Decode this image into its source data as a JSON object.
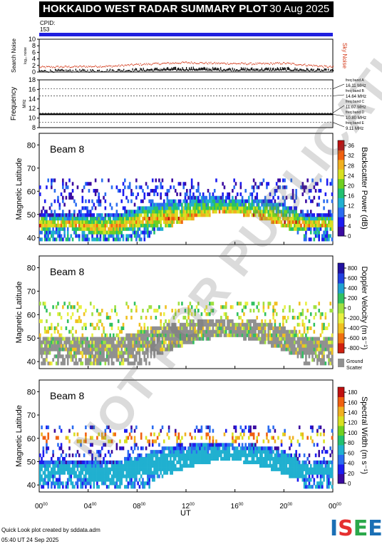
{
  "header": {
    "title": "HOKKAIDO WEST RADAR SUMMARY PLOT",
    "date": "30 Aug 2025",
    "cpid_label": "CPID:",
    "cpid_value": "153"
  },
  "watermark": "NOT FOR PUBLICATION",
  "footer": {
    "line1": "Quick Look plot created by sddata.adm",
    "line2": "05:40 UT 24 Sep 2025"
  },
  "logo": {
    "text": "ISEE",
    "colors": [
      "#1a6fb5",
      "#e53030",
      "#2aa84a",
      "#1a6fb5"
    ]
  },
  "chart_data": [
    {
      "type": "scatter",
      "name": "noise",
      "ylabel": "Search Noise",
      "ylabel2": "log₁₀ noise",
      "right_label": "Sky Noise",
      "ylim": [
        0,
        10
      ],
      "yticks": [
        0,
        2,
        4,
        6,
        8,
        10
      ],
      "x": [
        0,
        2,
        4,
        6,
        8,
        10,
        12,
        14,
        16,
        18,
        20,
        22,
        24
      ],
      "series": [
        {
          "name": "Sky Noise",
          "color": "#d43a1a",
          "values": [
            1.6,
            1.7,
            1.8,
            1.9,
            2.4,
            2.7,
            3.0,
            2.8,
            2.7,
            2.6,
            2.8,
            2.2,
            1.6
          ]
        },
        {
          "name": "Search Noise",
          "color": "#000000",
          "values": [
            0.4,
            0.5,
            0.5,
            0.6,
            0.8,
            1.0,
            1.2,
            1.1,
            1.0,
            1.0,
            1.1,
            0.8,
            0.5
          ]
        }
      ]
    },
    {
      "type": "line",
      "name": "frequency",
      "ylabel": "Frequency",
      "ylabel2": "MHz",
      "ylim": [
        8,
        18
      ],
      "yticks": [
        8,
        10,
        12,
        14,
        16,
        18
      ],
      "freq_mhz": 10.8,
      "bands": [
        {
          "label": "freq band A",
          "value": "16.11 MHz",
          "mhz": 16.11
        },
        {
          "label": "freq band B",
          "value": "14.64 MHz",
          "mhz": 14.64
        },
        {
          "label": "freq band C",
          "value": "11.07 MHz",
          "mhz": 11.07
        },
        {
          "label": "freq band D",
          "value": "10.80 MHz",
          "mhz": 10.8
        },
        {
          "label": "freq band E",
          "value": "9.11 MHz",
          "mhz": 9.11
        }
      ]
    },
    {
      "type": "heatmap",
      "name": "power",
      "beam": "Beam  8",
      "ylabel": "Magnetic Latitude",
      "ylim": [
        37,
        85
      ],
      "yticks": [
        40,
        50,
        60,
        70,
        80
      ],
      "colorbar_label": "Backscatter Power (dB)",
      "colorbar_ticks": [
        "0",
        "4",
        "8",
        "12",
        "16",
        "20",
        "24",
        "28",
        "32",
        "36"
      ],
      "colorbar_range": [
        0,
        38
      ],
      "colormap": [
        "#3a0aa0",
        "#1c1cf0",
        "#2a6cf0",
        "#20b0d0",
        "#22c070",
        "#70d020",
        "#d8e020",
        "#f0b020",
        "#f06010",
        "#c01010"
      ]
    },
    {
      "type": "heatmap",
      "name": "velocity",
      "beam": "Beam  8",
      "ylabel": "Magnetic Latitude",
      "ylim": [
        37,
        85
      ],
      "yticks": [
        40,
        50,
        60,
        70,
        80
      ],
      "colorbar_label": "Doppler Velocity (m s⁻¹)",
      "colorbar_ticks": [
        "-800",
        "-600",
        "-400",
        "-200",
        "0",
        "200",
        "400",
        "600",
        "800"
      ],
      "colorbar_range": [
        -900,
        900
      ],
      "colormap": [
        "#d02010",
        "#f07010",
        "#f0c020",
        "#e8f040",
        "#a0e040",
        "#30c060",
        "#20a0d0",
        "#2040e0",
        "#2010a0"
      ],
      "ground_scatter_label": [
        "Ground",
        "Scatter"
      ],
      "ground_color": "#909090"
    },
    {
      "type": "heatmap",
      "name": "width",
      "beam": "Beam  8",
      "ylabel": "Magnetic Latitude",
      "ylim": [
        37,
        85
      ],
      "yticks": [
        40,
        50,
        60,
        70,
        80
      ],
      "colorbar_label": "Spectral Width (m s⁻¹)",
      "colorbar_ticks": [
        "0",
        "20",
        "40",
        "60",
        "80",
        "100",
        "120",
        "140",
        "160",
        "180"
      ],
      "colorbar_range": [
        0,
        190
      ],
      "colormap": [
        "#3a0aa0",
        "#1c1cf0",
        "#2a6cf0",
        "#20b0d0",
        "#22c070",
        "#70d020",
        "#d8e020",
        "#f0b020",
        "#f06010",
        "#c01010"
      ]
    }
  ],
  "x_axis": {
    "label": "UT",
    "ticks": [
      {
        "h": "00",
        "m": "00"
      },
      {
        "h": "04",
        "m": "00"
      },
      {
        "h": "08",
        "m": "00"
      },
      {
        "h": "12",
        "m": "00"
      },
      {
        "h": "16",
        "m": "00"
      },
      {
        "h": "20",
        "m": "00"
      },
      {
        "h": "00",
        "m": "00"
      }
    ],
    "range_hours": [
      0,
      24
    ]
  }
}
